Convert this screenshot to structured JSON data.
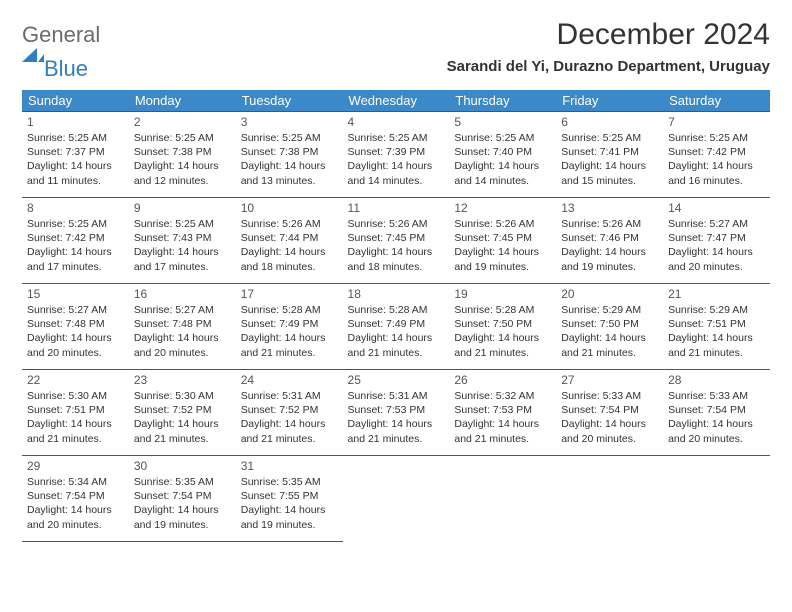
{
  "logo": {
    "general": "General",
    "blue": "Blue"
  },
  "title": "December 2024",
  "location": "Sarandi del Yi, Durazno Department, Uruguay",
  "colors": {
    "header_bg": "#3b89c9",
    "header_fg": "#ffffff",
    "cell_border": "#2a5d8a",
    "logo_gray": "#6b6b6b",
    "logo_blue": "#2f7fc2",
    "text": "#333333"
  },
  "day_headers": [
    "Sunday",
    "Monday",
    "Tuesday",
    "Wednesday",
    "Thursday",
    "Friday",
    "Saturday"
  ],
  "days": [
    {
      "n": "1",
      "sr": "5:25 AM",
      "ss": "7:37 PM",
      "dl": "14 hours and 11 minutes."
    },
    {
      "n": "2",
      "sr": "5:25 AM",
      "ss": "7:38 PM",
      "dl": "14 hours and 12 minutes."
    },
    {
      "n": "3",
      "sr": "5:25 AM",
      "ss": "7:38 PM",
      "dl": "14 hours and 13 minutes."
    },
    {
      "n": "4",
      "sr": "5:25 AM",
      "ss": "7:39 PM",
      "dl": "14 hours and 14 minutes."
    },
    {
      "n": "5",
      "sr": "5:25 AM",
      "ss": "7:40 PM",
      "dl": "14 hours and 14 minutes."
    },
    {
      "n": "6",
      "sr": "5:25 AM",
      "ss": "7:41 PM",
      "dl": "14 hours and 15 minutes."
    },
    {
      "n": "7",
      "sr": "5:25 AM",
      "ss": "7:42 PM",
      "dl": "14 hours and 16 minutes."
    },
    {
      "n": "8",
      "sr": "5:25 AM",
      "ss": "7:42 PM",
      "dl": "14 hours and 17 minutes."
    },
    {
      "n": "9",
      "sr": "5:25 AM",
      "ss": "7:43 PM",
      "dl": "14 hours and 17 minutes."
    },
    {
      "n": "10",
      "sr": "5:26 AM",
      "ss": "7:44 PM",
      "dl": "14 hours and 18 minutes."
    },
    {
      "n": "11",
      "sr": "5:26 AM",
      "ss": "7:45 PM",
      "dl": "14 hours and 18 minutes."
    },
    {
      "n": "12",
      "sr": "5:26 AM",
      "ss": "7:45 PM",
      "dl": "14 hours and 19 minutes."
    },
    {
      "n": "13",
      "sr": "5:26 AM",
      "ss": "7:46 PM",
      "dl": "14 hours and 19 minutes."
    },
    {
      "n": "14",
      "sr": "5:27 AM",
      "ss": "7:47 PM",
      "dl": "14 hours and 20 minutes."
    },
    {
      "n": "15",
      "sr": "5:27 AM",
      "ss": "7:48 PM",
      "dl": "14 hours and 20 minutes."
    },
    {
      "n": "16",
      "sr": "5:27 AM",
      "ss": "7:48 PM",
      "dl": "14 hours and 20 minutes."
    },
    {
      "n": "17",
      "sr": "5:28 AM",
      "ss": "7:49 PM",
      "dl": "14 hours and 21 minutes."
    },
    {
      "n": "18",
      "sr": "5:28 AM",
      "ss": "7:49 PM",
      "dl": "14 hours and 21 minutes."
    },
    {
      "n": "19",
      "sr": "5:28 AM",
      "ss": "7:50 PM",
      "dl": "14 hours and 21 minutes."
    },
    {
      "n": "20",
      "sr": "5:29 AM",
      "ss": "7:50 PM",
      "dl": "14 hours and 21 minutes."
    },
    {
      "n": "21",
      "sr": "5:29 AM",
      "ss": "7:51 PM",
      "dl": "14 hours and 21 minutes."
    },
    {
      "n": "22",
      "sr": "5:30 AM",
      "ss": "7:51 PM",
      "dl": "14 hours and 21 minutes."
    },
    {
      "n": "23",
      "sr": "5:30 AM",
      "ss": "7:52 PM",
      "dl": "14 hours and 21 minutes."
    },
    {
      "n": "24",
      "sr": "5:31 AM",
      "ss": "7:52 PM",
      "dl": "14 hours and 21 minutes."
    },
    {
      "n": "25",
      "sr": "5:31 AM",
      "ss": "7:53 PM",
      "dl": "14 hours and 21 minutes."
    },
    {
      "n": "26",
      "sr": "5:32 AM",
      "ss": "7:53 PM",
      "dl": "14 hours and 21 minutes."
    },
    {
      "n": "27",
      "sr": "5:33 AM",
      "ss": "7:54 PM",
      "dl": "14 hours and 20 minutes."
    },
    {
      "n": "28",
      "sr": "5:33 AM",
      "ss": "7:54 PM",
      "dl": "14 hours and 20 minutes."
    },
    {
      "n": "29",
      "sr": "5:34 AM",
      "ss": "7:54 PM",
      "dl": "14 hours and 20 minutes."
    },
    {
      "n": "30",
      "sr": "5:35 AM",
      "ss": "7:54 PM",
      "dl": "14 hours and 19 minutes."
    },
    {
      "n": "31",
      "sr": "5:35 AM",
      "ss": "7:55 PM",
      "dl": "14 hours and 19 minutes."
    }
  ],
  "labels": {
    "sunrise": "Sunrise:",
    "sunset": "Sunset:",
    "daylight": "Daylight:"
  }
}
